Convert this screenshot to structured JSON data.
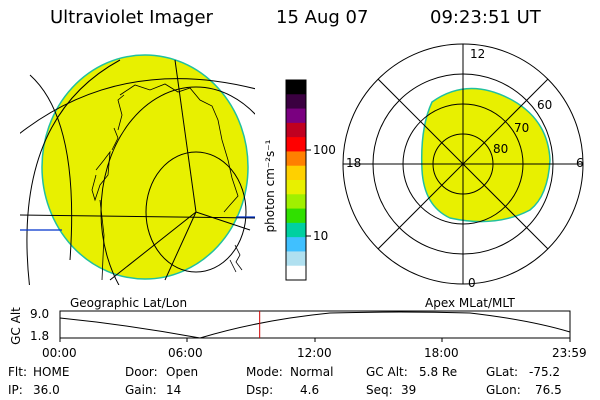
{
  "header": {
    "title": "Ultraviolet Imager",
    "date": "15 Aug 07",
    "time": "09:23:51 UT"
  },
  "colorbar": {
    "unit_label": "photon cm⁻²s⁻¹",
    "ticks": [
      "100",
      "10"
    ],
    "scale": "log",
    "colors": [
      "#000000",
      "#3a0040",
      "#7a0080",
      "#c00020",
      "#ff0000",
      "#ff8000",
      "#ffd000",
      "#e8f000",
      "#a0f000",
      "#30e000",
      "#00d0a0",
      "#40c0ff",
      "#b0e0f0",
      "#ffffff"
    ]
  },
  "polar_plot": {
    "top_label": "12",
    "bottom_label": "0",
    "left_label": "18",
    "right_label": "6",
    "ring_labels": [
      "60",
      "70",
      "80"
    ]
  },
  "left_map": {
    "label": "Geographic Lat/Lon",
    "fill_color": "#e8f000"
  },
  "right_map": {
    "label": "Apex MLat/MLT"
  },
  "altitude_plot": {
    "ylabel": "GC Alt",
    "ytick_high": "9.0",
    "ytick_low": "1.8",
    "x_ticks": [
      "00:00",
      "06:00",
      "12:00",
      "18:00",
      "23:59"
    ],
    "current_time_hours": 9.397,
    "marker_color": "#d00000"
  },
  "footer": {
    "flt_label": "Flt:",
    "flt_value": "HOME",
    "ip_label": "IP:",
    "ip_value": "36.0",
    "door_label": "Door:",
    "door_value": "Open",
    "gain_label": "Gain:",
    "gain_value": "14",
    "mode_label": "Mode:",
    "mode_value": "Normal",
    "dsp_label": "Dsp:",
    "dsp_value": "4.6",
    "gcalt_label": "GC Alt:",
    "gcalt_value": "5.8 Re",
    "seq_label": "Seq:",
    "seq_value": "39",
    "glat_label": "GLat:",
    "glat_value": "-75.2",
    "glon_label": "GLon:",
    "glon_value": "76.5"
  }
}
